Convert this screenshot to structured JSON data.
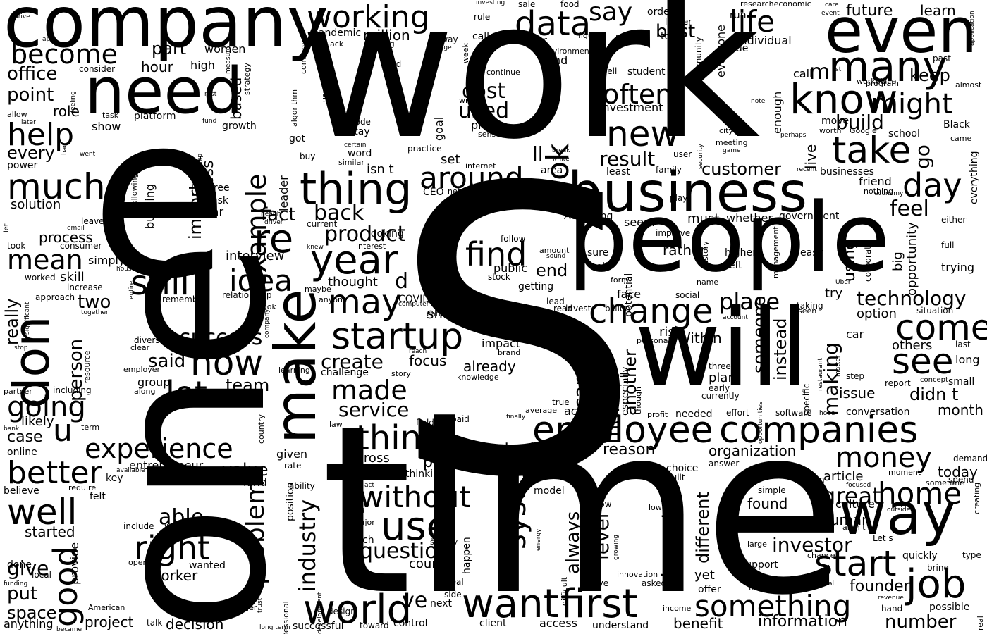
{
  "title": "Word cloud",
  "colors": {
    "background": "#ffffff",
    "text": "#000000"
  },
  "words": [
    "S",
    "work",
    "e",
    "time",
    "one",
    "people",
    "will",
    "company",
    "need",
    "business",
    "even",
    "make",
    "don",
    "way",
    "employee",
    "companies",
    "know",
    "many",
    "take",
    "want",
    "first",
    "world",
    "job",
    "start",
    "something",
    "come",
    "see",
    "change",
    "startup",
    "thing",
    "year",
    "much",
    "well",
    "right",
    "now",
    "use",
    "without",
    "lot",
    "say",
    "life",
    "data",
    "new",
    "day",
    "might",
    "look",
    "help",
    "better",
    "good",
    "think",
    "experience",
    "going",
    "working",
    "become",
    "still",
    "idea",
    "may",
    "example",
    "find",
    "around",
    "product",
    "made",
    "question",
    "system",
    "investor",
    "money",
    "home",
    "mean",
    "great",
    "technology",
    "process",
    "customer",
    "result",
    "service",
    "problem",
    "industry",
    "market",
    "career",
    "success",
    "create",
    "back",
    "fact",
    "often",
    "cost",
    "used",
    "build",
    "feel",
    "place",
    "others",
    "long",
    "making",
    "didn t",
    "month",
    "found",
    "human",
    "culture",
    "founder",
    "number",
    "information",
    "benefit",
    "decision",
    "project",
    "put",
    "space",
    "anything",
    "give",
    "done",
    "started",
    "local",
    "worker",
    "able",
    "two",
    "person",
    "really",
    "said",
    "team",
    "group",
    "little",
    "skill",
    "simply",
    "interview",
    "value",
    "kind",
    "entrepreneur",
    "reason",
    "actually",
    "pay",
    "across",
    "level",
    "always",
    "doesn t",
    "different",
    "article",
    "today",
    "demand",
    "spend",
    "quickly",
    "bring",
    "type",
    "possible",
    "hand",
    "next",
    "client",
    "access",
    "understand",
    "course",
    "tech",
    "happen",
    "deal",
    "side",
    "yet",
    "offer",
    "support",
    "line",
    "AI",
    "model",
    "education",
    "built",
    "choice",
    "answer",
    "organization",
    "issue",
    "plan",
    "early",
    "currently",
    "effort",
    "software",
    "conversation",
    "report",
    "small",
    "concept",
    "trying",
    "big",
    "full",
    "either",
    "opportunity",
    "government",
    "whether",
    "must",
    "seem",
    "According",
    "improve",
    "play",
    "check",
    "top",
    "area",
    "least",
    "family",
    "user",
    "CEO",
    "network",
    "won t",
    "internet",
    "isn t",
    "set",
    "goal",
    "practice",
    "word",
    "similar",
    "got",
    "buy",
    "leader",
    "looking",
    "interest",
    "current",
    "knew",
    "driver",
    "health",
    "important",
    "less",
    "based",
    "free",
    "ask",
    "far",
    "building",
    "following",
    "leadership",
    "solution",
    "let",
    "leave",
    "email",
    "consumer",
    "took",
    "worked",
    "increase",
    "approach",
    "remember",
    "relationship",
    "book",
    "anyone",
    "candidate",
    "computer",
    "share",
    "COVID",
    "impact",
    "already",
    "focus",
    "brand",
    "reach",
    "story",
    "knowledge",
    "challenge",
    "learning",
    "several",
    "clear",
    "diversity",
    "employer",
    "along",
    "difference",
    "including",
    "partner",
    "bank",
    "likely",
    "term",
    "case",
    "online",
    "given",
    "rate",
    "available",
    "require",
    "key",
    "believe",
    "felt",
    "ability",
    "act",
    "told",
    "major",
    "global",
    "society",
    "meet",
    "energy",
    "grow",
    "growing",
    "innovation",
    "love",
    "asked",
    "low",
    "income",
    "manager",
    "American",
    "trust",
    "professional",
    "development",
    "return",
    "design",
    "toward",
    "control",
    "successful",
    "long term",
    "talk",
    "became",
    "funding",
    "provide",
    "include",
    "wasn t",
    "despite",
    "open",
    "wanted",
    "position",
    "Although",
    "second",
    "difficult",
    "productivity",
    "average",
    "true",
    "paid",
    "finally",
    "profit",
    "needed",
    "country",
    "field",
    "law",
    "though",
    "thinking",
    "understanding",
    "financial",
    "especially",
    "another",
    "action",
    "potential",
    "public",
    "stock",
    "sound",
    "amount",
    "follow",
    "lead",
    "read",
    "invest",
    "billion",
    "social",
    "face",
    "risk",
    "personal",
    "Within",
    "someone",
    "instead",
    "three",
    "specific",
    "opportunities",
    "restaurant",
    "seen",
    "taking",
    "try",
    "account",
    "option",
    "situation",
    "car",
    "step",
    "last",
    "sure",
    "tell",
    "rather",
    "form",
    "name",
    "higher",
    "left",
    "history",
    "corporate",
    "easy",
    "management",
    "Uber",
    "using",
    "live",
    "enough",
    "everyone",
    "community",
    "due",
    "individual",
    "run",
    "call",
    "keep",
    "go",
    "future",
    "learn",
    "researcheconomic",
    "care",
    "event",
    "application",
    "past",
    "almost",
    "list",
    "note",
    "move",
    "worth",
    "Google",
    "school",
    "Black",
    "came",
    "everything",
    "friend",
    "nothing",
    "economy",
    "recent",
    "businesses",
    "security",
    "game",
    "meeting",
    "city",
    "perhaps",
    "workplace",
    "program",
    "state",
    "tool",
    "best",
    "order",
    "longer",
    "figure",
    "environment",
    "sell",
    "student",
    "investment",
    "mind",
    "never",
    "called",
    "sale",
    "food",
    "week",
    "rule",
    "investing",
    "away",
    "huge",
    "living",
    "lack",
    "pandemic",
    "million",
    "common",
    "usually",
    "algorithm",
    "strategy",
    "rest",
    "feeling",
    "high",
    "hour",
    "part",
    "women",
    "office",
    "point",
    "role",
    "allow",
    "later",
    "task",
    "show",
    "platform",
    "fund",
    "growth",
    "every",
    "power",
    "went",
    "bad",
    "drive",
    "app",
    "measure",
    "consider",
    "code",
    "stay",
    "certain",
    "write",
    "continue",
    "probably",
    "hard",
    "price",
    "sense",
    "bit",
    "white",
    "break",
    "ll",
    "re",
    "ve",
    "m",
    "d",
    "u",
    "moment",
    "sometime",
    "creating",
    "real",
    "focused",
    "Let s",
    "aren t",
    "chance",
    "digital",
    "revenue",
    "outside",
    "simple",
    "large",
    "maybe",
    "together",
    "significant",
    "house",
    "entire",
    "resource",
    "stop",
    "company",
    "hope",
    "matter",
    "turn",
    "thought",
    "getting",
    "end",
    "fix",
    "sense"
  ]
}
